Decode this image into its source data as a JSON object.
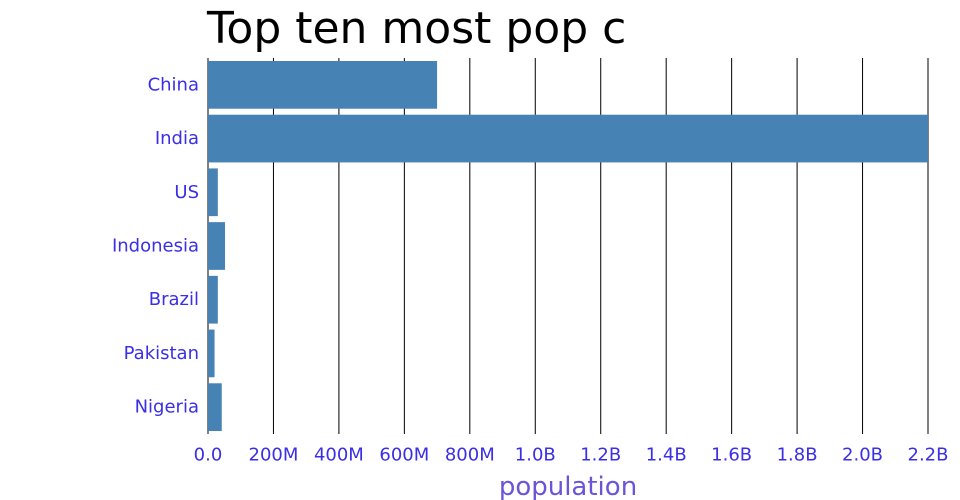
{
  "chart_data": {
    "type": "bar",
    "orientation": "horizontal",
    "title": "Top ten most pop c",
    "xlabel": "population",
    "ylabel": "",
    "categories": [
      "China",
      "India",
      "US",
      "Indonesia",
      "Brazil",
      "Pakistan",
      "Nigeria"
    ],
    "values": [
      700000000,
      2200000000,
      30000000,
      52000000,
      30000000,
      20000000,
      42000000
    ],
    "xlim": [
      0,
      2200000000
    ],
    "x_ticks": [
      0,
      200000000,
      400000000,
      600000000,
      800000000,
      1000000000,
      1200000000,
      1400000000,
      1600000000,
      1800000000,
      2000000000,
      2200000000
    ],
    "x_tick_labels": [
      "0.0",
      "200M",
      "400M",
      "600M",
      "800M",
      "1.0B",
      "1.2B",
      "1.4B",
      "1.6B",
      "1.8B",
      "2.0B",
      "2.2B"
    ],
    "grid": "vertical",
    "legend": "none",
    "bar_color": "#4682b4",
    "label_color": "#3a2ee6",
    "axis_title_color": "#6a55d8",
    "grid_color": "#000000"
  }
}
